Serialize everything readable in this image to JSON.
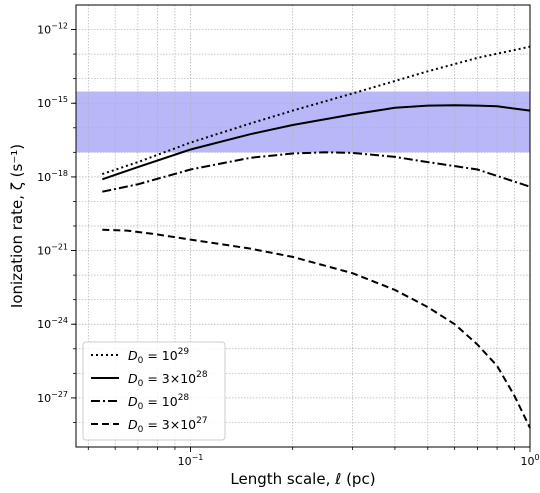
{
  "chart_data": {
    "type": "line",
    "xlabel": "Length scale, ℓ (pc)",
    "ylabel": "Ionization rate, ζ (s⁻¹)",
    "xscale": "log",
    "yscale": "log",
    "xlim": [
      0.046,
      1.0
    ],
    "ylim": [
      1e-29,
      1e-11
    ],
    "x_major_ticks": [
      {
        "value": 0.1,
        "base": "10",
        "exp": "−1"
      },
      {
        "value": 1.0,
        "base": "10",
        "exp": "0"
      }
    ],
    "y_major_ticks": [
      {
        "value": 1e-27,
        "base": "10",
        "exp": "−27"
      },
      {
        "value": 1e-24,
        "base": "10",
        "exp": "−24"
      },
      {
        "value": 1e-21,
        "base": "10",
        "exp": "−21"
      },
      {
        "value": 1e-18,
        "base": "10",
        "exp": "−18"
      },
      {
        "value": 1e-15,
        "base": "10",
        "exp": "−15"
      },
      {
        "value": 1e-12,
        "base": "10",
        "exp": "−12"
      }
    ],
    "grid": true,
    "legend_position": "lower-left",
    "band": {
      "ymin": 1e-17,
      "ymax": 3e-15,
      "color": "#b8b8f8"
    },
    "series": [
      {
        "name_prefix": "D",
        "name_sub": "0",
        "name_mid": " = 10",
        "name_exp": "29",
        "dash": "dotted",
        "x": [
          0.055,
          0.07,
          0.1,
          0.15,
          0.2,
          0.3,
          0.4,
          0.5,
          0.7,
          1.0
        ],
        "y": [
          1.3e-18,
          4e-18,
          2.5e-17,
          1.5e-16,
          5e-16,
          2.5e-15,
          8e-15,
          2e-14,
          7e-14,
          2e-13
        ]
      },
      {
        "name_prefix": "D",
        "name_sub": "0",
        "name_mid": " = 3×10",
        "name_exp": "28",
        "dash": "solid",
        "x": [
          0.055,
          0.07,
          0.1,
          0.15,
          0.2,
          0.3,
          0.4,
          0.5,
          0.6,
          0.7,
          0.8,
          1.0
        ],
        "y": [
          8e-19,
          2.5e-18,
          1.3e-17,
          5.5e-17,
          1.3e-16,
          3.5e-16,
          6.5e-16,
          8e-16,
          8.3e-16,
          8e-16,
          7.5e-16,
          5e-16
        ]
      },
      {
        "name_prefix": "D",
        "name_sub": "0",
        "name_mid": " = 10",
        "name_exp": "28",
        "dash": "dashdot",
        "x": [
          0.055,
          0.07,
          0.1,
          0.15,
          0.2,
          0.25,
          0.3,
          0.4,
          0.5,
          0.7,
          1.0
        ],
        "y": [
          2.5e-19,
          5e-19,
          2e-18,
          6e-18,
          9e-18,
          1e-17,
          9.5e-18,
          6.5e-18,
          4e-18,
          2e-18,
          4e-19
        ]
      },
      {
        "name_prefix": "D",
        "name_sub": "0",
        "name_mid": " = 3×10",
        "name_exp": "27",
        "dash": "dashed",
        "x": [
          0.055,
          0.065,
          0.08,
          0.1,
          0.15,
          0.2,
          0.3,
          0.4,
          0.5,
          0.6,
          0.7,
          0.8,
          0.9,
          1.0
        ],
        "y": [
          7e-21,
          6.5e-21,
          4.5e-21,
          2.8e-21,
          1.2e-21,
          5.5e-22,
          1.2e-22,
          2.5e-23,
          5e-24,
          1e-24,
          1.5e-25,
          2e-26,
          1.2e-27,
          6e-29
        ]
      }
    ]
  }
}
